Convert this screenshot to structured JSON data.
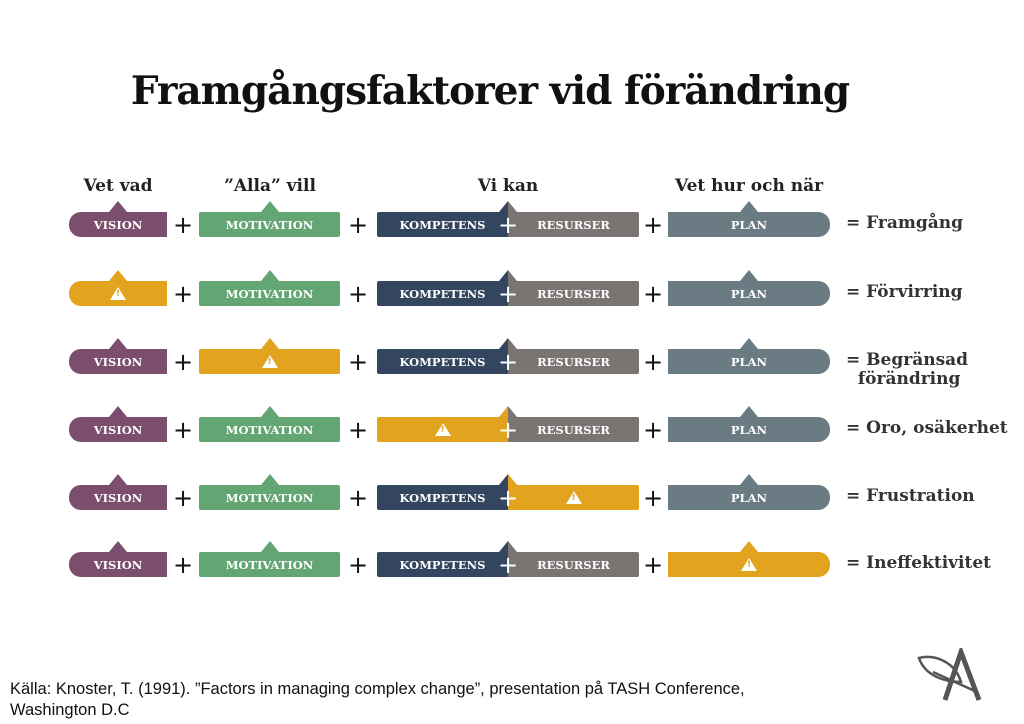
{
  "title": "Framgångsfaktorer vid förändring",
  "headers": {
    "vision": "Vet vad",
    "motivation": "”Alla” vill",
    "kompetens": "Vi kan",
    "plan": "Vet hur och när"
  },
  "labels": {
    "vision": "VISION",
    "motivation": "MOTIVATION",
    "kompetens": "KOMPETENS",
    "resurser": "RESURSER",
    "plan": "PLAN"
  },
  "colors": {
    "vision": "#7a4e6c",
    "motivation": "#63a573",
    "kompetens": "#33455f",
    "resurser": "#7a7573",
    "plan": "#6b7b83",
    "warning": "#e2a31e"
  },
  "rows": [
    {
      "missing": null,
      "result": "= Framgång"
    },
    {
      "missing": "vision",
      "result": "= Förvirring"
    },
    {
      "missing": "motivation",
      "result": "= Begränsad\n  förändring"
    },
    {
      "missing": "kompetens",
      "result": "= Oro, osäkerhet"
    },
    {
      "missing": "resurser",
      "result": "= Frustration"
    },
    {
      "missing": "plan",
      "result": "= Ineffektivitet"
    }
  ],
  "plus": "+",
  "source": "Källa: Knoster, T. (1991). ”Factors in managing complex change”, presentation på TASH Conference, Washington D.C",
  "logo_text": "A"
}
